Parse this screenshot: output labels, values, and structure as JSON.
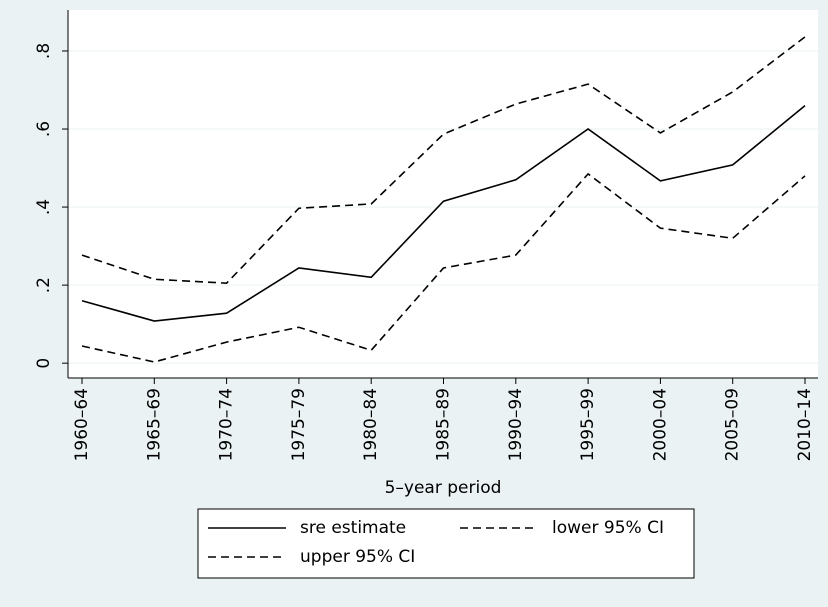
{
  "chart_data": {
    "type": "line",
    "xlabel": "5–year period",
    "categories": [
      "1960–64",
      "1965–69",
      "1970–74",
      "1975–79",
      "1980–84",
      "1985–89",
      "1990–94",
      "1995–99",
      "2000–04",
      "2005–09",
      "2010–14"
    ],
    "series": [
      {
        "name": "sre estimate",
        "color": "#000000",
        "style": "solid",
        "values": [
          0.16,
          0.108,
          0.128,
          0.244,
          0.22,
          0.415,
          0.47,
          0.6,
          0.467,
          0.508,
          0.66
        ]
      },
      {
        "name": "lower 95% CI",
        "color": "#000000",
        "style": "dashed",
        "values": [
          0.044,
          0.003,
          0.054,
          0.092,
          0.033,
          0.244,
          0.277,
          0.485,
          0.346,
          0.32,
          0.48
        ]
      },
      {
        "name": "upper 95% CI",
        "color": "#000000",
        "style": "dashed",
        "values": [
          0.277,
          0.215,
          0.205,
          0.397,
          0.408,
          0.587,
          0.664,
          0.715,
          0.59,
          0.695,
          0.836
        ]
      }
    ],
    "ylim": [
      -0.038,
      0.905
    ],
    "yticks": [
      0,
      {
        "value": 0.2,
        "label": ".2"
      },
      {
        "value": 0.4,
        "label": ".4"
      },
      {
        "value": 0.6,
        "label": ".6"
      },
      {
        "value": 0.8,
        "label": ".8"
      }
    ],
    "grid": true,
    "legend": "bottom"
  }
}
